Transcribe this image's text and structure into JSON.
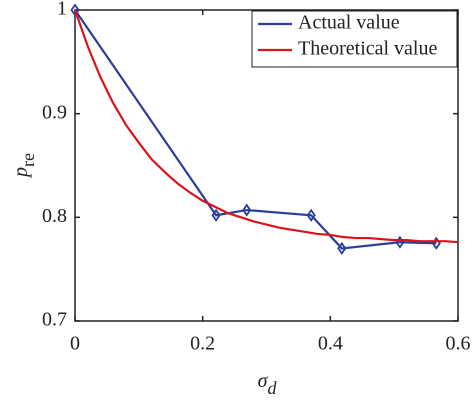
{
  "chart_data": {
    "type": "line",
    "xlabel": {
      "main": "σ",
      "sub": "d"
    },
    "ylabel": {
      "main": "p",
      "sub": "re"
    },
    "xlim": [
      0,
      0.6
    ],
    "ylim": [
      0.7,
      1
    ],
    "xticks": [
      0,
      0.2,
      0.4,
      0.6
    ],
    "yticks": [
      0.7,
      0.8,
      0.9,
      1
    ],
    "grid": false,
    "legend": "upper right",
    "series": [
      {
        "name": "Actual value",
        "color": "#2a3f9a",
        "marker": "diamond",
        "x": [
          0,
          0.221,
          0.269,
          0.37,
          0.418,
          0.509,
          0.566
        ],
        "values": [
          1,
          0.802,
          0.807,
          0.802,
          0.77,
          0.776,
          0.775
        ]
      },
      {
        "name": "Theoretical value",
        "color": "#d9141c",
        "x": [
          0,
          0.02,
          0.04,
          0.06,
          0.08,
          0.1,
          0.12,
          0.14,
          0.16,
          0.18,
          0.2,
          0.22,
          0.24,
          0.26,
          0.28,
          0.3,
          0.32,
          0.34,
          0.36,
          0.38,
          0.4,
          0.42,
          0.44,
          0.46,
          0.48,
          0.5,
          0.52,
          0.54,
          0.56,
          0.58,
          0.6
        ],
        "values": [
          1,
          0.965,
          0.935,
          0.91,
          0.889,
          0.872,
          0.856,
          0.844,
          0.833,
          0.824,
          0.816,
          0.81,
          0.804,
          0.8,
          0.796,
          0.793,
          0.79,
          0.788,
          0.786,
          0.784,
          0.783,
          0.781,
          0.78,
          0.78,
          0.779,
          0.778,
          0.778,
          0.777,
          0.777,
          0.777,
          0.776
        ]
      }
    ]
  }
}
